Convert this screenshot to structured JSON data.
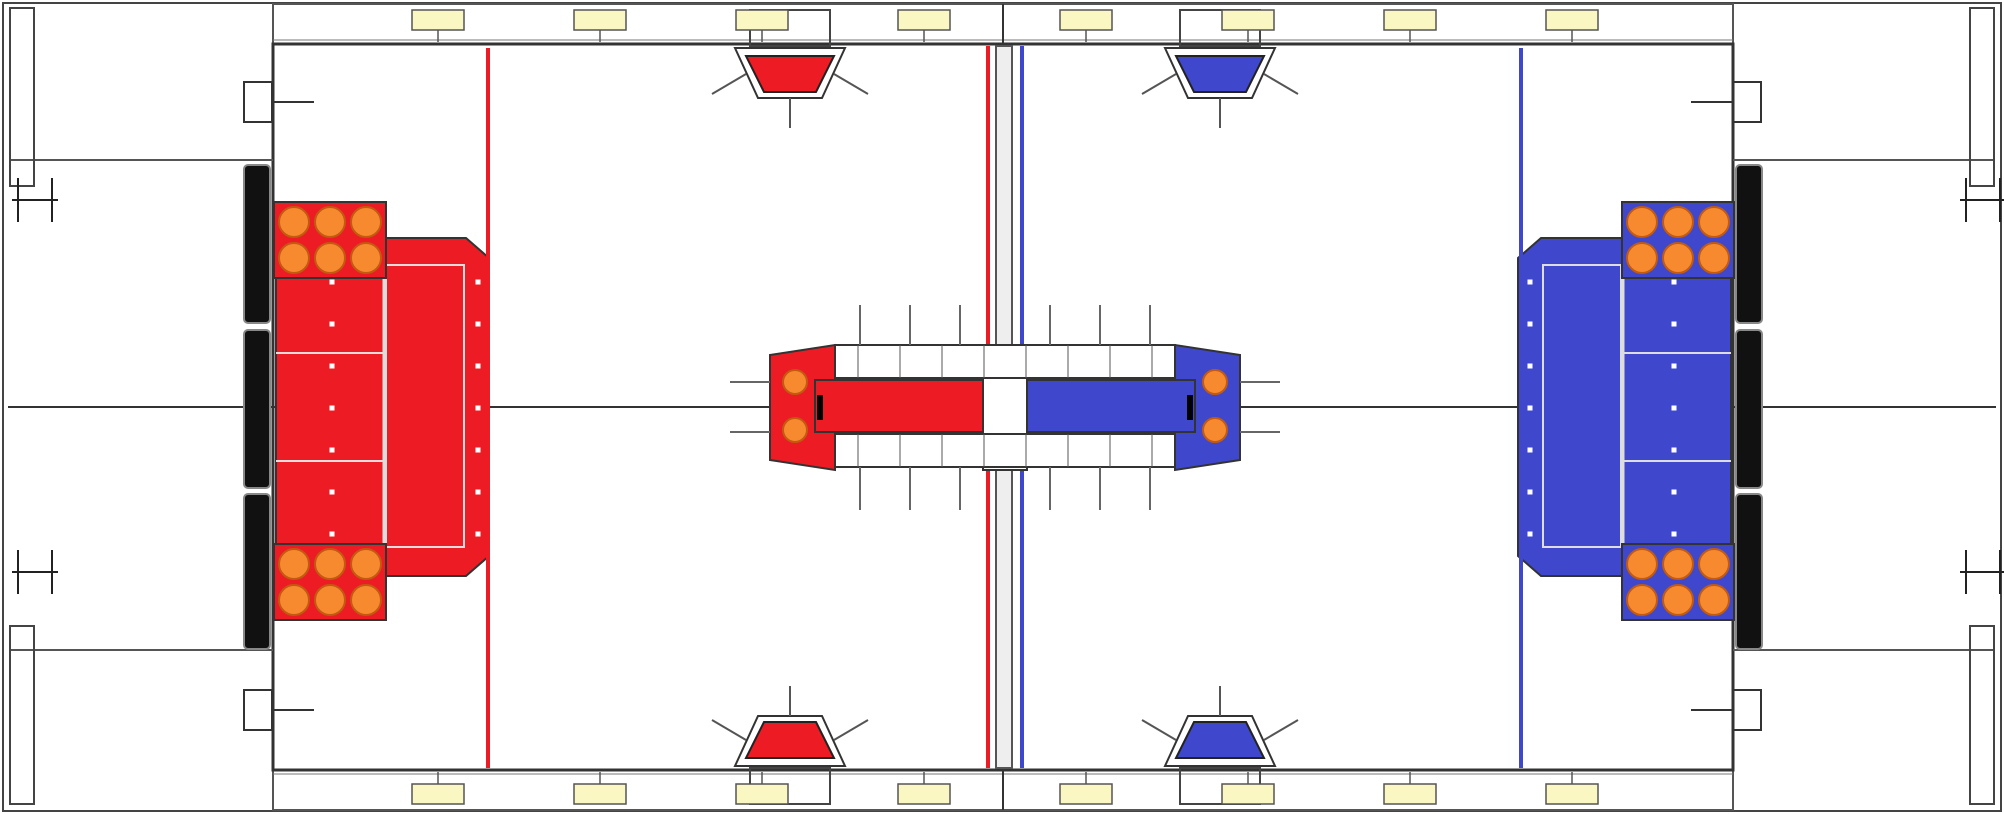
{
  "colors": {
    "red_alliance": "#ed1c24",
    "blue_alliance": "#3f48cc",
    "ball": "#f7892f",
    "ball_stroke": "#c25a10",
    "light": "#fbf7c2",
    "outline": "#333333",
    "wall": "#111111"
  },
  "elements": {
    "red_loading_zone": "red",
    "blue_loading_zone": "blue",
    "red_zone_line": "red",
    "blue_zone_line": "blue",
    "red_bridge_half": "red",
    "blue_bridge_half": "blue",
    "red_hub_top": "red",
    "red_hub_bottom": "red",
    "blue_hub_top": "blue",
    "blue_hub_bottom": "blue"
  },
  "balls": {
    "red_top_rows": 2,
    "red_bottom_rows": 2,
    "blue_top_rows": 2,
    "blue_bottom_rows": 2,
    "per_row": 3,
    "bridge_balls_each_side": 2
  },
  "lights_per_edge": 8
}
